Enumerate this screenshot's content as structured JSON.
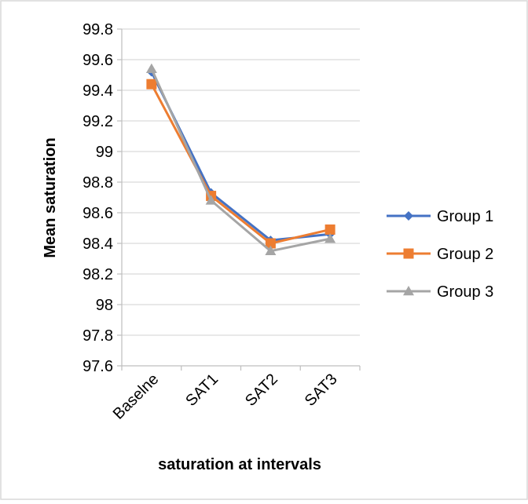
{
  "chart_data": {
    "type": "line",
    "title": "",
    "xlabel": "saturation at intervals",
    "ylabel": "Mean saturation",
    "categories": [
      "Baselne",
      "SAT1",
      "SAT2",
      "SAT3"
    ],
    "ylim": [
      97.6,
      99.8
    ],
    "ytick_step": 0.2,
    "ytick_labels": [
      "97.6",
      "97.8",
      "98",
      "98.2",
      "98.4",
      "98.6",
      "98.8",
      "99",
      "99.2",
      "99.4",
      "99.6",
      "99.8"
    ],
    "grid": true,
    "legend_position": "right",
    "series": [
      {
        "name": "Group 1",
        "values": [
          99.52,
          98.73,
          98.42,
          98.46
        ],
        "color": "#4472C4",
        "marker": "diamond"
      },
      {
        "name": "Group 2",
        "values": [
          99.44,
          98.71,
          98.4,
          98.49
        ],
        "color": "#ED7D31",
        "marker": "square"
      },
      {
        "name": "Group 3",
        "values": [
          99.54,
          98.68,
          98.35,
          98.43
        ],
        "color": "#A5A5A5",
        "marker": "triangle"
      }
    ]
  }
}
